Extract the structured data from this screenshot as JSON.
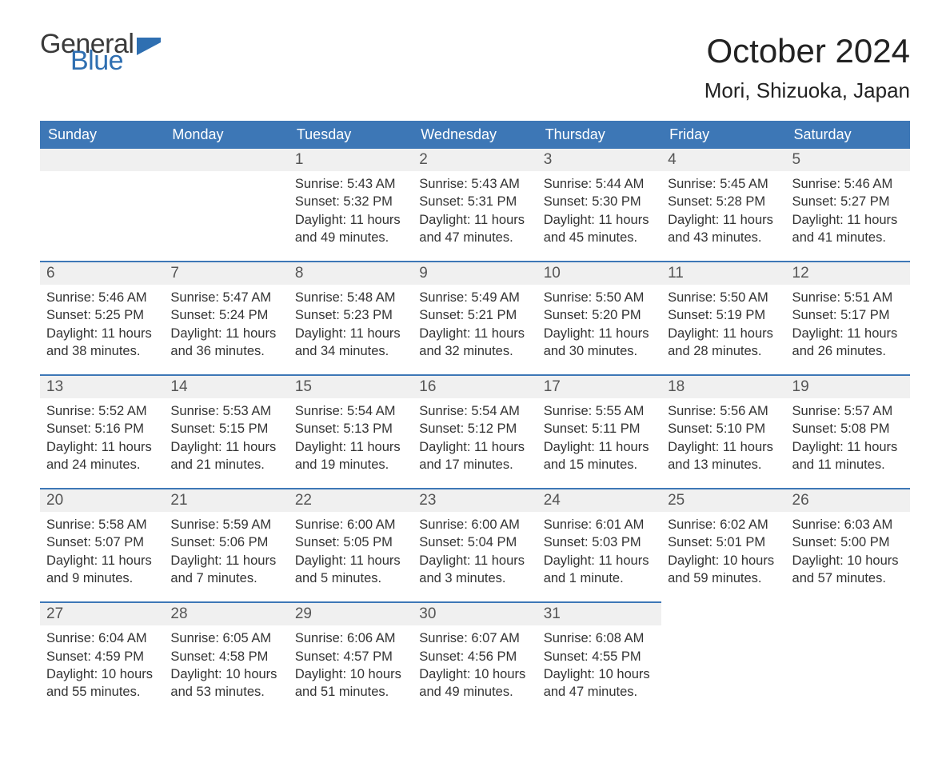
{
  "brand": {
    "text1": "General",
    "text2": "Blue",
    "flag_color": "#2f6fb1"
  },
  "title": "October 2024",
  "location": "Mori, Shizuoka, Japan",
  "weekdays": [
    "Sunday",
    "Monday",
    "Tuesday",
    "Wednesday",
    "Thursday",
    "Friday",
    "Saturday"
  ],
  "colors": {
    "header_bg": "#3d77b6",
    "header_text": "#ffffff",
    "daynum_bg": "#f0f0f0",
    "border_top": "#3d77b6",
    "body_text": "#333333"
  },
  "fonts": {
    "title_size_pt": 32,
    "location_size_pt": 20,
    "weekday_size_pt": 14,
    "daynum_size_pt": 14,
    "body_size_pt": 12
  },
  "weeks": [
    [
      null,
      null,
      {
        "n": "1",
        "sr": "5:43 AM",
        "ss": "5:32 PM",
        "dl": "11 hours and 49 minutes."
      },
      {
        "n": "2",
        "sr": "5:43 AM",
        "ss": "5:31 PM",
        "dl": "11 hours and 47 minutes."
      },
      {
        "n": "3",
        "sr": "5:44 AM",
        "ss": "5:30 PM",
        "dl": "11 hours and 45 minutes."
      },
      {
        "n": "4",
        "sr": "5:45 AM",
        "ss": "5:28 PM",
        "dl": "11 hours and 43 minutes."
      },
      {
        "n": "5",
        "sr": "5:46 AM",
        "ss": "5:27 PM",
        "dl": "11 hours and 41 minutes."
      }
    ],
    [
      {
        "n": "6",
        "sr": "5:46 AM",
        "ss": "5:25 PM",
        "dl": "11 hours and 38 minutes."
      },
      {
        "n": "7",
        "sr": "5:47 AM",
        "ss": "5:24 PM",
        "dl": "11 hours and 36 minutes."
      },
      {
        "n": "8",
        "sr": "5:48 AM",
        "ss": "5:23 PM",
        "dl": "11 hours and 34 minutes."
      },
      {
        "n": "9",
        "sr": "5:49 AM",
        "ss": "5:21 PM",
        "dl": "11 hours and 32 minutes."
      },
      {
        "n": "10",
        "sr": "5:50 AM",
        "ss": "5:20 PM",
        "dl": "11 hours and 30 minutes."
      },
      {
        "n": "11",
        "sr": "5:50 AM",
        "ss": "5:19 PM",
        "dl": "11 hours and 28 minutes."
      },
      {
        "n": "12",
        "sr": "5:51 AM",
        "ss": "5:17 PM",
        "dl": "11 hours and 26 minutes."
      }
    ],
    [
      {
        "n": "13",
        "sr": "5:52 AM",
        "ss": "5:16 PM",
        "dl": "11 hours and 24 minutes."
      },
      {
        "n": "14",
        "sr": "5:53 AM",
        "ss": "5:15 PM",
        "dl": "11 hours and 21 minutes."
      },
      {
        "n": "15",
        "sr": "5:54 AM",
        "ss": "5:13 PM",
        "dl": "11 hours and 19 minutes."
      },
      {
        "n": "16",
        "sr": "5:54 AM",
        "ss": "5:12 PM",
        "dl": "11 hours and 17 minutes."
      },
      {
        "n": "17",
        "sr": "5:55 AM",
        "ss": "5:11 PM",
        "dl": "11 hours and 15 minutes."
      },
      {
        "n": "18",
        "sr": "5:56 AM",
        "ss": "5:10 PM",
        "dl": "11 hours and 13 minutes."
      },
      {
        "n": "19",
        "sr": "5:57 AM",
        "ss": "5:08 PM",
        "dl": "11 hours and 11 minutes."
      }
    ],
    [
      {
        "n": "20",
        "sr": "5:58 AM",
        "ss": "5:07 PM",
        "dl": "11 hours and 9 minutes."
      },
      {
        "n": "21",
        "sr": "5:59 AM",
        "ss": "5:06 PM",
        "dl": "11 hours and 7 minutes."
      },
      {
        "n": "22",
        "sr": "6:00 AM",
        "ss": "5:05 PM",
        "dl": "11 hours and 5 minutes."
      },
      {
        "n": "23",
        "sr": "6:00 AM",
        "ss": "5:04 PM",
        "dl": "11 hours and 3 minutes."
      },
      {
        "n": "24",
        "sr": "6:01 AM",
        "ss": "5:03 PM",
        "dl": "11 hours and 1 minute."
      },
      {
        "n": "25",
        "sr": "6:02 AM",
        "ss": "5:01 PM",
        "dl": "10 hours and 59 minutes."
      },
      {
        "n": "26",
        "sr": "6:03 AM",
        "ss": "5:00 PM",
        "dl": "10 hours and 57 minutes."
      }
    ],
    [
      {
        "n": "27",
        "sr": "6:04 AM",
        "ss": "4:59 PM",
        "dl": "10 hours and 55 minutes."
      },
      {
        "n": "28",
        "sr": "6:05 AM",
        "ss": "4:58 PM",
        "dl": "10 hours and 53 minutes."
      },
      {
        "n": "29",
        "sr": "6:06 AM",
        "ss": "4:57 PM",
        "dl": "10 hours and 51 minutes."
      },
      {
        "n": "30",
        "sr": "6:07 AM",
        "ss": "4:56 PM",
        "dl": "10 hours and 49 minutes."
      },
      {
        "n": "31",
        "sr": "6:08 AM",
        "ss": "4:55 PM",
        "dl": "10 hours and 47 minutes."
      },
      null,
      null
    ]
  ],
  "labels": {
    "sunrise": "Sunrise:",
    "sunset": "Sunset:",
    "daylight": "Daylight:"
  }
}
